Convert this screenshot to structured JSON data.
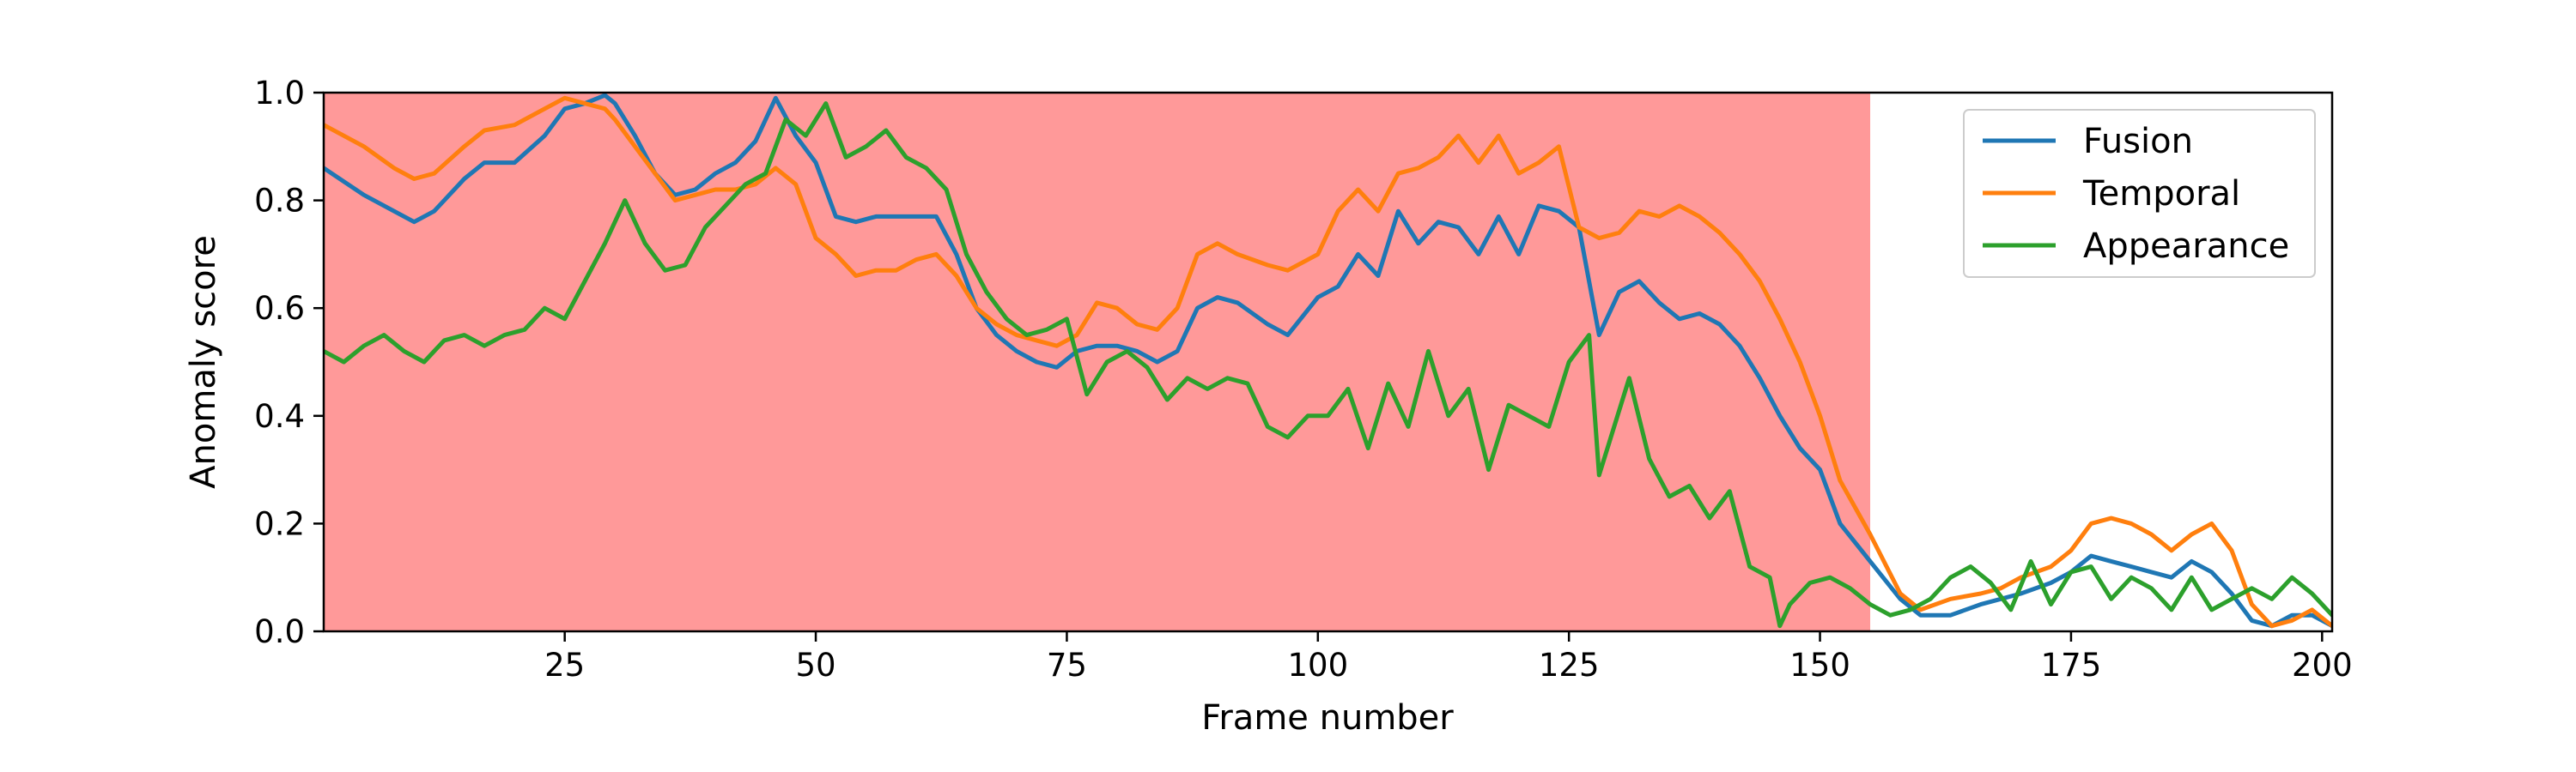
{
  "chart_data": {
    "type": "line",
    "title": "",
    "xlabel": "Frame number",
    "ylabel": "Anomaly score",
    "xlim": [
      1,
      201
    ],
    "ylim": [
      0.0,
      1.0
    ],
    "xticks": [
      "25",
      "50",
      "75",
      "100",
      "125",
      "150",
      "175",
      "200"
    ],
    "yticks": [
      "0.0",
      "0.2",
      "0.4",
      "0.6",
      "0.8",
      "1.0"
    ],
    "legend_position": "top-right",
    "anomaly_region": {
      "x_start": 1,
      "x_end": 155,
      "color": "#ff9999"
    },
    "series": [
      {
        "name": "Fusion",
        "color": "#1f77b4",
        "x": [
          1,
          5,
          10,
          12,
          15,
          17,
          20,
          23,
          25,
          27,
          29,
          30,
          32,
          34,
          36,
          38,
          40,
          42,
          44,
          46,
          48,
          50,
          52,
          54,
          56,
          58,
          60,
          62,
          64,
          66,
          68,
          70,
          72,
          74,
          76,
          78,
          80,
          82,
          84,
          86,
          88,
          90,
          92,
          95,
          97,
          100,
          102,
          104,
          106,
          108,
          110,
          112,
          114,
          116,
          118,
          120,
          122,
          124,
          126,
          128,
          130,
          132,
          134,
          136,
          138,
          140,
          142,
          144,
          146,
          148,
          150,
          152,
          155,
          158,
          160,
          163,
          166,
          168,
          170,
          173,
          175,
          177,
          179,
          181,
          183,
          185,
          187,
          189,
          191,
          193,
          195,
          197,
          199,
          201
        ],
        "y": [
          0.86,
          0.81,
          0.76,
          0.78,
          0.84,
          0.87,
          0.87,
          0.92,
          0.97,
          0.98,
          0.995,
          0.98,
          0.92,
          0.85,
          0.81,
          0.82,
          0.85,
          0.87,
          0.91,
          0.99,
          0.92,
          0.87,
          0.77,
          0.76,
          0.77,
          0.77,
          0.77,
          0.77,
          0.7,
          0.6,
          0.55,
          0.52,
          0.5,
          0.49,
          0.52,
          0.53,
          0.53,
          0.52,
          0.5,
          0.52,
          0.6,
          0.62,
          0.61,
          0.57,
          0.55,
          0.62,
          0.64,
          0.7,
          0.66,
          0.78,
          0.72,
          0.76,
          0.75,
          0.7,
          0.77,
          0.7,
          0.79,
          0.78,
          0.75,
          0.55,
          0.63,
          0.65,
          0.61,
          0.58,
          0.59,
          0.57,
          0.53,
          0.47,
          0.4,
          0.34,
          0.3,
          0.2,
          0.13,
          0.06,
          0.03,
          0.03,
          0.05,
          0.06,
          0.07,
          0.09,
          0.11,
          0.14,
          0.13,
          0.12,
          0.11,
          0.1,
          0.13,
          0.11,
          0.07,
          0.02,
          0.01,
          0.03,
          0.03,
          0.01
        ]
      },
      {
        "name": "Temporal",
        "color": "#ff7f0e",
        "x": [
          1,
          5,
          8,
          10,
          12,
          15,
          17,
          20,
          23,
          25,
          27,
          29,
          30,
          32,
          34,
          36,
          38,
          40,
          42,
          44,
          46,
          48,
          50,
          52,
          54,
          56,
          58,
          60,
          62,
          64,
          66,
          68,
          70,
          72,
          74,
          76,
          78,
          80,
          82,
          84,
          86,
          88,
          90,
          92,
          95,
          97,
          100,
          102,
          104,
          106,
          108,
          110,
          112,
          114,
          116,
          118,
          120,
          122,
          124,
          126,
          128,
          130,
          132,
          134,
          136,
          138,
          140,
          142,
          144,
          146,
          148,
          150,
          152,
          155,
          158,
          160,
          163,
          166,
          168,
          170,
          173,
          175,
          177,
          179,
          181,
          183,
          185,
          187,
          189,
          191,
          193,
          195,
          197,
          199,
          201
        ],
        "y": [
          0.94,
          0.9,
          0.86,
          0.84,
          0.85,
          0.9,
          0.93,
          0.94,
          0.97,
          0.99,
          0.98,
          0.97,
          0.95,
          0.9,
          0.85,
          0.8,
          0.81,
          0.82,
          0.82,
          0.83,
          0.86,
          0.83,
          0.73,
          0.7,
          0.66,
          0.67,
          0.67,
          0.69,
          0.7,
          0.66,
          0.6,
          0.57,
          0.55,
          0.54,
          0.53,
          0.55,
          0.61,
          0.6,
          0.57,
          0.56,
          0.6,
          0.7,
          0.72,
          0.7,
          0.68,
          0.67,
          0.7,
          0.78,
          0.82,
          0.78,
          0.85,
          0.86,
          0.88,
          0.92,
          0.87,
          0.92,
          0.85,
          0.87,
          0.9,
          0.75,
          0.73,
          0.74,
          0.78,
          0.77,
          0.79,
          0.77,
          0.74,
          0.7,
          0.65,
          0.58,
          0.5,
          0.4,
          0.28,
          0.18,
          0.07,
          0.04,
          0.06,
          0.07,
          0.08,
          0.1,
          0.12,
          0.15,
          0.2,
          0.21,
          0.2,
          0.18,
          0.15,
          0.18,
          0.2,
          0.15,
          0.05,
          0.01,
          0.02,
          0.04,
          0.01
        ]
      },
      {
        "name": "Appearance",
        "color": "#2ca02c",
        "x": [
          1,
          3,
          5,
          7,
          9,
          11,
          13,
          15,
          17,
          19,
          21,
          23,
          25,
          27,
          29,
          31,
          33,
          35,
          37,
          39,
          41,
          43,
          45,
          47,
          49,
          51,
          53,
          55,
          57,
          59,
          61,
          63,
          65,
          67,
          69,
          71,
          73,
          75,
          77,
          79,
          81,
          83,
          85,
          87,
          89,
          91,
          93,
          95,
          97,
          99,
          101,
          103,
          105,
          107,
          109,
          111,
          113,
          115,
          117,
          119,
          121,
          123,
          125,
          127,
          128,
          129,
          131,
          133,
          135,
          137,
          139,
          141,
          143,
          145,
          146,
          147,
          149,
          151,
          153,
          155,
          157,
          159,
          161,
          163,
          165,
          167,
          169,
          171,
          173,
          175,
          177,
          179,
          181,
          183,
          185,
          187,
          189,
          191,
          193,
          195,
          197,
          199,
          201
        ],
        "y": [
          0.52,
          0.5,
          0.53,
          0.55,
          0.52,
          0.5,
          0.54,
          0.55,
          0.53,
          0.55,
          0.56,
          0.6,
          0.58,
          0.65,
          0.72,
          0.8,
          0.72,
          0.67,
          0.68,
          0.75,
          0.79,
          0.83,
          0.85,
          0.95,
          0.92,
          0.98,
          0.88,
          0.9,
          0.93,
          0.88,
          0.86,
          0.82,
          0.7,
          0.63,
          0.58,
          0.55,
          0.56,
          0.58,
          0.44,
          0.5,
          0.52,
          0.49,
          0.43,
          0.47,
          0.45,
          0.47,
          0.46,
          0.38,
          0.36,
          0.4,
          0.4,
          0.45,
          0.34,
          0.46,
          0.38,
          0.52,
          0.4,
          0.45,
          0.3,
          0.42,
          0.4,
          0.38,
          0.5,
          0.55,
          0.29,
          0.35,
          0.47,
          0.32,
          0.25,
          0.27,
          0.21,
          0.26,
          0.12,
          0.1,
          0.01,
          0.05,
          0.09,
          0.1,
          0.08,
          0.05,
          0.03,
          0.04,
          0.06,
          0.1,
          0.12,
          0.09,
          0.04,
          0.13,
          0.05,
          0.11,
          0.12,
          0.06,
          0.1,
          0.08,
          0.04,
          0.1,
          0.04,
          0.06,
          0.08,
          0.06,
          0.1,
          0.07,
          0.03
        ]
      }
    ]
  }
}
